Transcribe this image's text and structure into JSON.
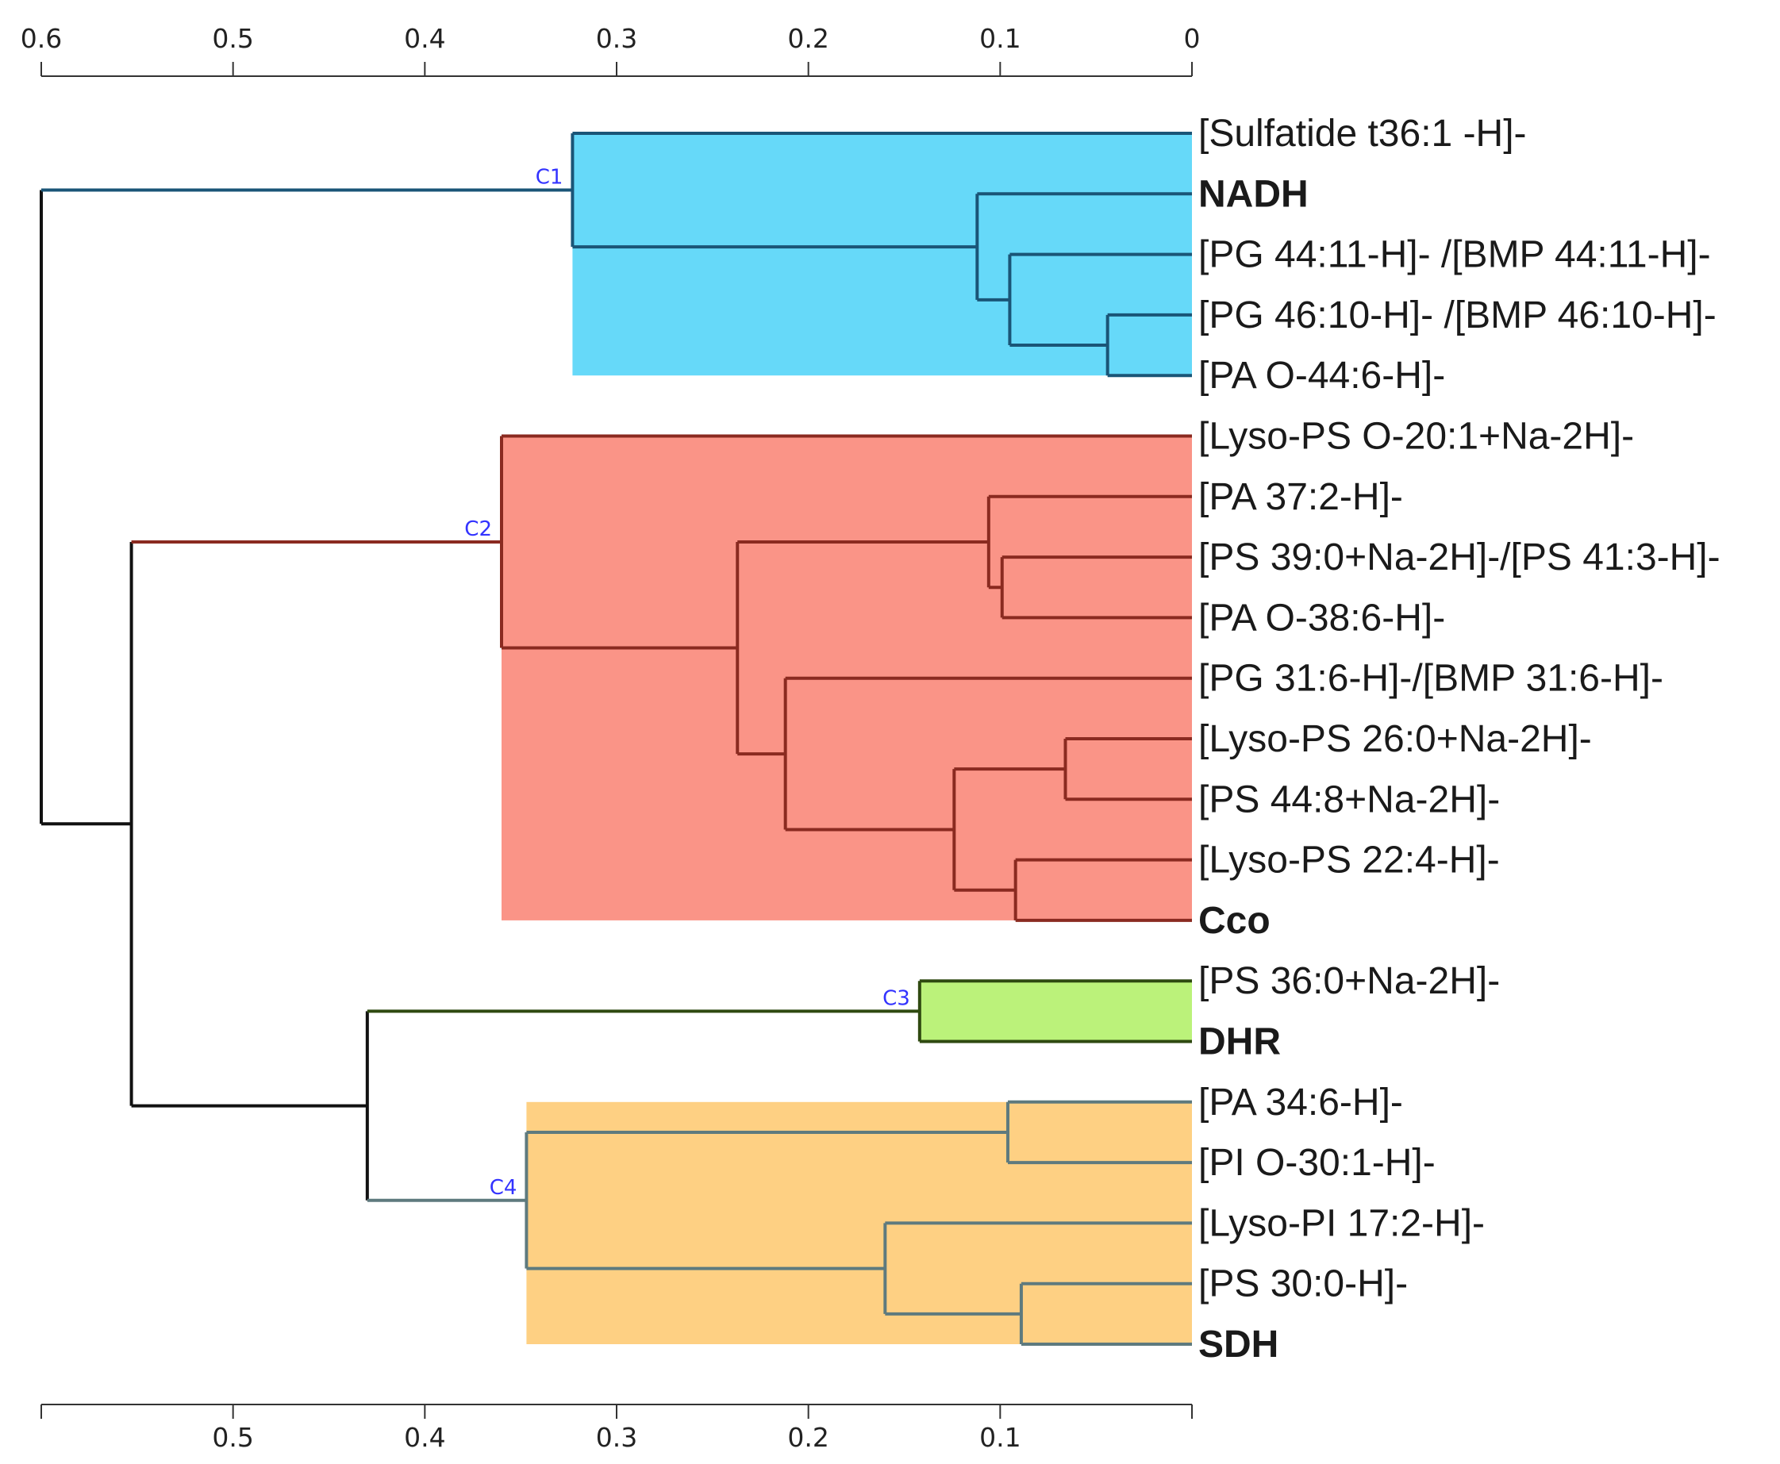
{
  "chart_data": {
    "type": "dendrogram",
    "axis": {
      "direction": "reversed",
      "range": [
        0.6,
        0
      ],
      "ticks": [
        {
          "value": 0.6,
          "label": "0.6"
        },
        {
          "value": 0.5,
          "label": "0.5"
        },
        {
          "value": 0.4,
          "label": "0.4"
        },
        {
          "value": 0.3,
          "label": "0.3"
        },
        {
          "value": 0.2,
          "label": "0.2"
        },
        {
          "value": 0.1,
          "label": "0.1"
        },
        {
          "value": 0,
          "label": "0"
        }
      ],
      "bottom_ticks": [
        {
          "value": 0.6,
          "label": ""
        },
        {
          "value": 0.5,
          "label": "0.5"
        },
        {
          "value": 0.4,
          "label": "0.4"
        },
        {
          "value": 0.3,
          "label": "0.3"
        },
        {
          "value": 0.2,
          "label": "0.2"
        },
        {
          "value": 0.1,
          "label": "0.1"
        },
        {
          "value": 0,
          "label": ""
        }
      ]
    },
    "leaves": [
      {
        "label": "[Sulfatide t36:1 -H]-",
        "color": "#1a1a1a",
        "bold": false
      },
      {
        "label": "NADH",
        "color": "#1f1fff",
        "bold": true
      },
      {
        "label": "[PG 44:11-H]- /[BMP 44:11-H]-",
        "color": "#1a1a1a",
        "bold": false
      },
      {
        "label": "[PG 46:10-H]- /[BMP 46:10-H]-",
        "color": "#1a1a1a",
        "bold": false
      },
      {
        "label": "[PA O-44:6-H]-",
        "color": "#1a1a1a",
        "bold": false
      },
      {
        "label": "[Lyso-PS O-20:1+Na-2H]-",
        "color": "#1a1a1a",
        "bold": false
      },
      {
        "label": "[PA 37:2-H]-",
        "color": "#1a1a1a",
        "bold": false
      },
      {
        "label": "[PS 39:0+Na-2H]-/[PS 41:3-H]-",
        "color": "#1a1a1a",
        "bold": false
      },
      {
        "label": "[PA O-38:6-H]-",
        "color": "#1a1a1a",
        "bold": false
      },
      {
        "label": "[PG 31:6-H]-/[BMP 31:6-H]-",
        "color": "#1a1a1a",
        "bold": false
      },
      {
        "label": "[Lyso-PS 26:0+Na-2H]-",
        "color": "#1a1a1a",
        "bold": false
      },
      {
        "label": "[PS 44:8+Na-2H]-",
        "color": "#1a1a1a",
        "bold": false
      },
      {
        "label": "[Lyso-PS 22:4-H]-",
        "color": "#1a1a1a",
        "bold": false
      },
      {
        "label": "Cco",
        "color": "#ff1a1a",
        "bold": true
      },
      {
        "label": "[PS 36:0+Na-2H]-",
        "color": "#1a1a1a",
        "bold": false
      },
      {
        "label": "DHR",
        "color": "#118811",
        "bold": true
      },
      {
        "label": "[PA 34:6-H]-",
        "color": "#1a1a1a",
        "bold": false
      },
      {
        "label": "[PI O-30:1-H]-",
        "color": "#1a1a1a",
        "bold": false
      },
      {
        "label": "[Lyso-PI 17:2-H]-",
        "color": "#1a1a1a",
        "bold": false
      },
      {
        "label": "[PS 30:0-H]-",
        "color": "#1a1a1a",
        "bold": false
      },
      {
        "label": "SDH",
        "color": "#c04a00",
        "bold": true
      }
    ],
    "merges": [
      {
        "id": "n1",
        "children": [
          3,
          4
        ],
        "height": 0.044
      },
      {
        "id": "n2",
        "children": [
          2,
          "n1"
        ],
        "height": 0.095
      },
      {
        "id": "n3",
        "children": [
          1,
          "n2"
        ],
        "height": 0.112
      },
      {
        "id": "C1",
        "children": [
          0,
          "n3"
        ],
        "height": 0.323,
        "cluster": "C1"
      },
      {
        "id": "n5",
        "children": [
          7,
          8
        ],
        "height": 0.099
      },
      {
        "id": "n6",
        "children": [
          6,
          "n5"
        ],
        "height": 0.106
      },
      {
        "id": "n7",
        "children": [
          10,
          11
        ],
        "height": 0.066
      },
      {
        "id": "n8",
        "children": [
          12,
          13
        ],
        "height": 0.092
      },
      {
        "id": "n9",
        "children": [
          "n7",
          "n8"
        ],
        "height": 0.124
      },
      {
        "id": "n10",
        "children": [
          9,
          "n9"
        ],
        "height": 0.212
      },
      {
        "id": "n11",
        "children": [
          "n6",
          "n10"
        ],
        "height": 0.237
      },
      {
        "id": "C2",
        "children": [
          5,
          "n11"
        ],
        "height": 0.36,
        "cluster": "C2"
      },
      {
        "id": "C3",
        "children": [
          14,
          15
        ],
        "height": 0.142,
        "cluster": "C3"
      },
      {
        "id": "n14",
        "children": [
          16,
          17
        ],
        "height": 0.096
      },
      {
        "id": "n15",
        "children": [
          19,
          20
        ],
        "height": 0.089
      },
      {
        "id": "n16",
        "children": [
          18,
          "n15"
        ],
        "height": 0.16
      },
      {
        "id": "C4",
        "children": [
          "n14",
          "n16"
        ],
        "height": 0.347,
        "cluster": "C4"
      },
      {
        "id": "n18",
        "children": [
          "C3",
          "C4"
        ],
        "height": 0.43
      },
      {
        "id": "n19",
        "children": [
          "C2",
          "n18"
        ],
        "height": 0.553
      },
      {
        "id": "root",
        "children": [
          "C1",
          "n19"
        ],
        "height": 0.6
      }
    ],
    "clusters": [
      {
        "name": "C1",
        "label": "C1",
        "fill": "#66d9f9",
        "stroke": "#1a5577",
        "leaf_range": [
          0,
          4
        ]
      },
      {
        "name": "C2",
        "label": "C2",
        "fill": "#fa9487",
        "stroke": "#8a2a20",
        "leaf_range": [
          5,
          13
        ]
      },
      {
        "name": "C3",
        "label": "C3",
        "fill": "#bbf27a",
        "stroke": "#2f4a10",
        "leaf_range": [
          14,
          15
        ]
      },
      {
        "name": "C4",
        "label": "C4",
        "fill": "#fed083",
        "stroke": "#5e7a7e",
        "leaf_range": [
          16,
          20
        ]
      }
    ]
  }
}
